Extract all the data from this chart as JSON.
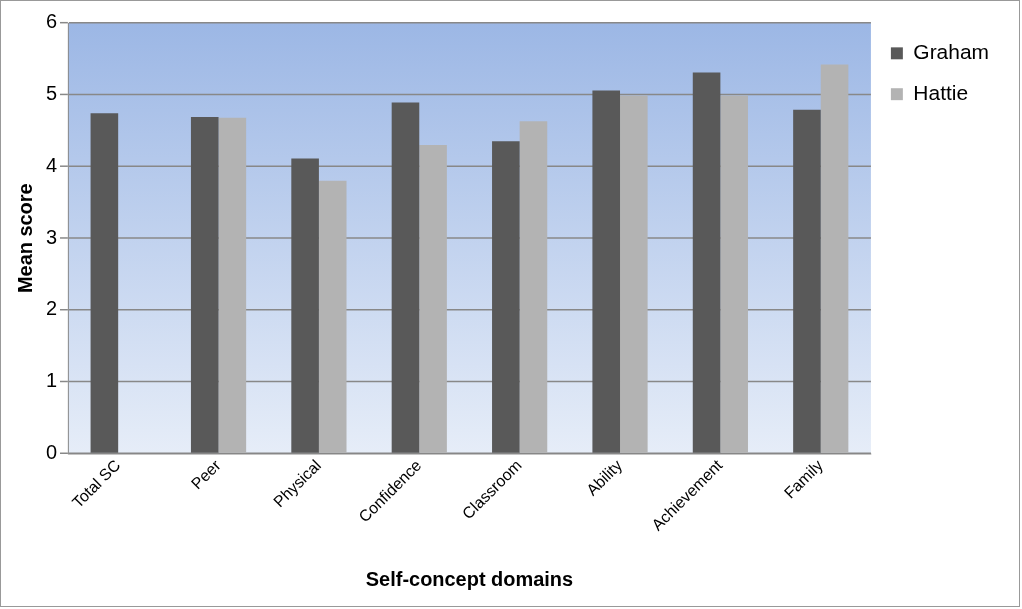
{
  "chart_data": {
    "type": "bar",
    "xlabel": "Self-concept domains",
    "ylabel": "Mean score",
    "categories": [
      "Total SC",
      "Peer",
      "Physical",
      "Confidence",
      "Classroom",
      "Ability",
      "Achievement",
      "Family"
    ],
    "series": [
      {
        "name": "Graham",
        "color": "#595959",
        "values": [
          4.74,
          4.69,
          4.11,
          4.89,
          4.35,
          5.06,
          5.31,
          4.79
        ]
      },
      {
        "name": "Hattie",
        "color": "#b3b3b3",
        "values": [
          null,
          4.68,
          3.8,
          4.3,
          4.63,
          4.99,
          4.99,
          5.42
        ]
      }
    ],
    "ylim": [
      0,
      6
    ],
    "yticks": [
      0,
      1,
      2,
      3,
      4,
      5,
      6
    ],
    "grid": "y",
    "legend": "top right"
  }
}
